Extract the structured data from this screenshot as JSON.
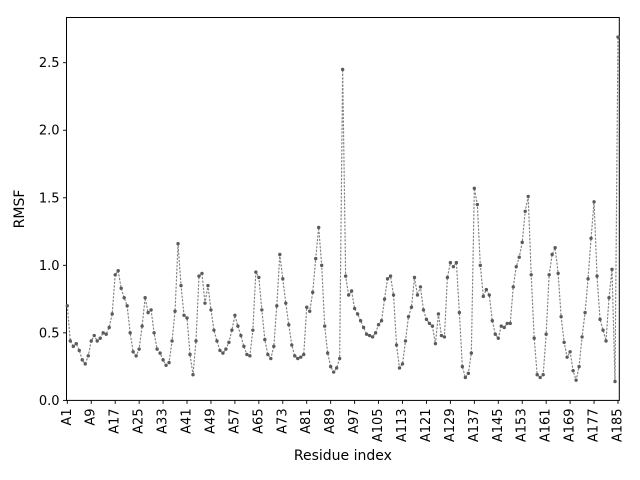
{
  "figure": {
    "background": "#ffffff"
  },
  "chart_data": {
    "type": "line",
    "title": "",
    "xlabel": "Residue index",
    "ylabel": "RMSF",
    "grid": false,
    "legend": null,
    "line_style": "dotted",
    "marker": "dot",
    "line_color": "#848484",
    "marker_color": "#5b5b5b",
    "axis_color": "#000000",
    "ylim": [
      0.0,
      2.835
    ],
    "ytick_labels": [
      "0.0",
      "0.5",
      "1.0",
      "1.5",
      "2.0",
      "2.5"
    ],
    "yticks": [
      0.0,
      0.5,
      1.0,
      1.5,
      2.0,
      2.5
    ],
    "x_tick_step": 8,
    "x_tick_labels": [
      "A1",
      "A9",
      "A17",
      "A25",
      "A33",
      "A41",
      "A49",
      "A57",
      "A65",
      "A73",
      "A81",
      "A89",
      "A97",
      "A105",
      "A113",
      "A121",
      "A129",
      "A137",
      "A145",
      "A153",
      "A161",
      "A169",
      "A177",
      "A185"
    ],
    "residue_prefix": "A",
    "first_residue": 1,
    "series": [
      {
        "name": "RMSF",
        "values": [
          0.7,
          0.44,
          0.4,
          0.42,
          0.37,
          0.3,
          0.27,
          0.33,
          0.44,
          0.48,
          0.44,
          0.46,
          0.5,
          0.49,
          0.54,
          0.64,
          0.93,
          0.96,
          0.83,
          0.76,
          0.7,
          0.5,
          0.36,
          0.33,
          0.38,
          0.55,
          0.76,
          0.65,
          0.67,
          0.5,
          0.38,
          0.35,
          0.3,
          0.26,
          0.28,
          0.44,
          0.66,
          1.16,
          0.85,
          0.63,
          0.61,
          0.34,
          0.19,
          0.44,
          0.92,
          0.94,
          0.72,
          0.85,
          0.67,
          0.52,
          0.44,
          0.37,
          0.35,
          0.38,
          0.43,
          0.52,
          0.63,
          0.55,
          0.48,
          0.4,
          0.34,
          0.33,
          0.52,
          0.95,
          0.91,
          0.67,
          0.45,
          0.34,
          0.31,
          0.4,
          0.7,
          1.08,
          0.9,
          0.72,
          0.56,
          0.41,
          0.33,
          0.31,
          0.32,
          0.34,
          0.69,
          0.66,
          0.8,
          1.05,
          1.28,
          1.0,
          0.55,
          0.35,
          0.25,
          0.21,
          0.24,
          0.31,
          2.45,
          0.92,
          0.78,
          0.81,
          0.68,
          0.64,
          0.59,
          0.54,
          0.49,
          0.48,
          0.47,
          0.5,
          0.56,
          0.59,
          0.75,
          0.9,
          0.92,
          0.78,
          0.41,
          0.24,
          0.27,
          0.44,
          0.62,
          0.69,
          0.91,
          0.78,
          0.84,
          0.67,
          0.6,
          0.57,
          0.55,
          0.42,
          0.64,
          0.48,
          0.47,
          0.91,
          1.02,
          0.99,
          1.02,
          0.65,
          0.25,
          0.17,
          0.2,
          0.35,
          1.57,
          1.45,
          1.0,
          0.77,
          0.82,
          0.78,
          0.59,
          0.49,
          0.46,
          0.55,
          0.54,
          0.57,
          0.57,
          0.84,
          0.99,
          1.06,
          1.17,
          1.4,
          1.51,
          0.93,
          0.46,
          0.19,
          0.17,
          0.19,
          0.49,
          0.93,
          1.08,
          1.13,
          0.94,
          0.62,
          0.43,
          0.32,
          0.36,
          0.22,
          0.15,
          0.25,
          0.47,
          0.65,
          0.9,
          1.2,
          1.47,
          0.92,
          0.6,
          0.52,
          0.44,
          0.76,
          0.97,
          0.14,
          2.69
        ]
      }
    ]
  }
}
